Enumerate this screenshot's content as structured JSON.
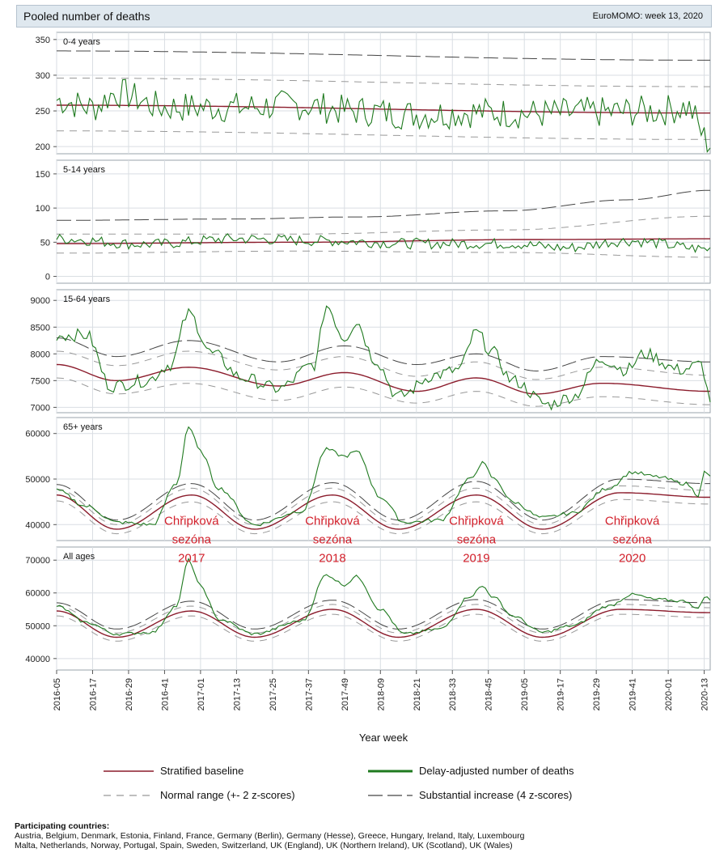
{
  "header": {
    "title": "Pooled number of deaths",
    "source": "EuroMOMO: week 13, 2020"
  },
  "colors": {
    "baseline": "#8b1c2c",
    "deaths": "#1f7a1f",
    "normal": "#999999",
    "substantial": "#444444",
    "annotation": "#d21f2a"
  },
  "chart_data": {
    "type": "line",
    "xlabel": "Year week",
    "x_ticks": [
      "2016-05",
      "2016-17",
      "2016-29",
      "2016-41",
      "2017-01",
      "2017-13",
      "2017-25",
      "2017-37",
      "2017-49",
      "2018-09",
      "2018-21",
      "2018-33",
      "2018-45",
      "2019-05",
      "2019-17",
      "2019-29",
      "2019-41",
      "2020-01",
      "2020-13"
    ],
    "grid": true,
    "panels": [
      {
        "label": "0-4 years",
        "yticks": [
          200,
          250,
          300,
          350
        ],
        "ylim": [
          190,
          360
        ],
        "baseline": [
          [
            0,
            258
          ],
          [
            218,
            247
          ]
        ],
        "normal_hi": [
          [
            0,
            296
          ],
          [
            218,
            284
          ]
        ],
        "normal_lo": [
          [
            0,
            222
          ],
          [
            218,
            210
          ]
        ],
        "substantial": [
          [
            0,
            334
          ],
          [
            218,
            321
          ]
        ],
        "deaths_anchors": [
          [
            0,
            265
          ],
          [
            12,
            255
          ],
          [
            20,
            275
          ],
          [
            36,
            255
          ],
          [
            60,
            255
          ],
          [
            80,
            258
          ],
          [
            100,
            250
          ],
          [
            120,
            245
          ],
          [
            140,
            248
          ],
          [
            160,
            246
          ],
          [
            180,
            248
          ],
          [
            200,
            250
          ],
          [
            210,
            255
          ],
          [
            218,
            205
          ]
        ],
        "deaths_noise": 22
      },
      {
        "label": "5-14 years",
        "yticks": [
          0,
          50,
          100,
          150
        ],
        "ylim": [
          -10,
          170
        ],
        "baseline": [
          [
            0,
            48
          ],
          [
            80,
            50
          ],
          [
            160,
            54
          ],
          [
            218,
            55
          ]
        ],
        "normal_hi": [
          [
            0,
            62
          ],
          [
            80,
            62
          ],
          [
            150,
            68
          ],
          [
            218,
            88
          ]
        ],
        "normal_lo": [
          [
            0,
            34
          ],
          [
            80,
            37
          ],
          [
            150,
            35
          ],
          [
            218,
            28
          ]
        ],
        "substantial": [
          [
            0,
            82
          ],
          [
            60,
            84
          ],
          [
            100,
            87
          ],
          [
            150,
            96
          ],
          [
            190,
            112
          ],
          [
            218,
            126
          ]
        ],
        "deaths_anchors": [
          [
            0,
            55
          ],
          [
            30,
            47
          ],
          [
            60,
            55
          ],
          [
            90,
            52
          ],
          [
            120,
            48
          ],
          [
            150,
            48
          ],
          [
            170,
            42
          ],
          [
            190,
            52
          ],
          [
            218,
            40
          ]
        ],
        "deaths_noise": 8
      },
      {
        "label": "15-64 years",
        "yticks": [
          7000,
          7500,
          8000,
          8500,
          9000
        ],
        "ylim": [
          6900,
          9200
        ],
        "baseline": [
          [
            0,
            7800
          ],
          [
            20,
            7500
          ],
          [
            44,
            7750
          ],
          [
            74,
            7400
          ],
          [
            96,
            7650
          ],
          [
            120,
            7300
          ],
          [
            140,
            7550
          ],
          [
            160,
            7250
          ],
          [
            182,
            7450
          ],
          [
            218,
            7300
          ]
        ],
        "normal_hi": [
          [
            0,
            8050
          ],
          [
            20,
            7780
          ],
          [
            44,
            8050
          ],
          [
            74,
            7700
          ],
          [
            96,
            7950
          ],
          [
            120,
            7580
          ],
          [
            140,
            7850
          ],
          [
            160,
            7520
          ],
          [
            182,
            7750
          ],
          [
            218,
            7600
          ]
        ],
        "normal_lo": [
          [
            0,
            7550
          ],
          [
            20,
            7250
          ],
          [
            44,
            7450
          ],
          [
            74,
            7130
          ],
          [
            96,
            7380
          ],
          [
            120,
            7080
          ],
          [
            140,
            7300
          ],
          [
            160,
            7020
          ],
          [
            182,
            7200
          ],
          [
            218,
            7050
          ]
        ],
        "substantial": [
          [
            0,
            8300
          ],
          [
            20,
            7950
          ],
          [
            44,
            8250
          ],
          [
            74,
            7850
          ],
          [
            96,
            8150
          ],
          [
            120,
            7800
          ],
          [
            140,
            8000
          ],
          [
            160,
            7680
          ],
          [
            182,
            7950
          ],
          [
            218,
            7850
          ]
        ],
        "deaths_anchors": [
          [
            0,
            8350
          ],
          [
            10,
            8350
          ],
          [
            18,
            7400
          ],
          [
            30,
            7500
          ],
          [
            38,
            7800
          ],
          [
            44,
            8750
          ],
          [
            52,
            8000
          ],
          [
            62,
            7550
          ],
          [
            74,
            7350
          ],
          [
            86,
            7800
          ],
          [
            90,
            8900
          ],
          [
            96,
            8300
          ],
          [
            100,
            8600
          ],
          [
            106,
            7900
          ],
          [
            114,
            7200
          ],
          [
            126,
            7600
          ],
          [
            134,
            7700
          ],
          [
            140,
            8400
          ],
          [
            145,
            8050
          ],
          [
            152,
            7500
          ],
          [
            164,
            7050
          ],
          [
            172,
            7200
          ],
          [
            182,
            7900
          ],
          [
            190,
            7700
          ],
          [
            196,
            8000
          ],
          [
            208,
            7700
          ],
          [
            215,
            7800
          ],
          [
            218,
            7150
          ]
        ],
        "deaths_noise": 120
      },
      {
        "label": "65+ years",
        "yticks": [
          40000,
          50000,
          60000
        ],
        "ylim": [
          36500,
          63500
        ],
        "baseline": [
          [
            0,
            46500
          ],
          [
            20,
            39000
          ],
          [
            45,
            46500
          ],
          [
            66,
            39000
          ],
          [
            92,
            46500
          ],
          [
            114,
            39000
          ],
          [
            140,
            46500
          ],
          [
            162,
            39000
          ],
          [
            188,
            47000
          ],
          [
            218,
            46000
          ]
        ],
        "normal_hi": [
          [
            0,
            47800
          ],
          [
            20,
            40000
          ],
          [
            45,
            48000
          ],
          [
            66,
            40000
          ],
          [
            92,
            48000
          ],
          [
            114,
            40000
          ],
          [
            140,
            48000
          ],
          [
            162,
            40000
          ],
          [
            188,
            48500
          ],
          [
            218,
            47500
          ]
        ],
        "normal_lo": [
          [
            0,
            45200
          ],
          [
            20,
            38000
          ],
          [
            45,
            45000
          ],
          [
            66,
            38000
          ],
          [
            92,
            45000
          ],
          [
            114,
            38000
          ],
          [
            140,
            45000
          ],
          [
            162,
            38000
          ],
          [
            188,
            45500
          ],
          [
            218,
            44500
          ]
        ],
        "substantial": [
          [
            0,
            48800
          ],
          [
            20,
            41000
          ],
          [
            45,
            49000
          ],
          [
            66,
            41000
          ],
          [
            92,
            49200
          ],
          [
            114,
            41000
          ],
          [
            140,
            49500
          ],
          [
            162,
            41000
          ],
          [
            188,
            50000
          ],
          [
            218,
            49000
          ]
        ],
        "deaths_anchors": [
          [
            0,
            47500
          ],
          [
            10,
            44000
          ],
          [
            20,
            40500
          ],
          [
            32,
            40000
          ],
          [
            40,
            49000
          ],
          [
            44,
            61500
          ],
          [
            48,
            56000
          ],
          [
            54,
            48000
          ],
          [
            66,
            40000
          ],
          [
            82,
            43000
          ],
          [
            90,
            56500
          ],
          [
            96,
            55000
          ],
          [
            100,
            56000
          ],
          [
            108,
            46000
          ],
          [
            116,
            40500
          ],
          [
            128,
            41000
          ],
          [
            138,
            50000
          ],
          [
            142,
            53500
          ],
          [
            146,
            50000
          ],
          [
            152,
            45000
          ],
          [
            162,
            41500
          ],
          [
            172,
            42500
          ],
          [
            184,
            48000
          ],
          [
            192,
            51500
          ],
          [
            200,
            50500
          ],
          [
            210,
            49000
          ],
          [
            214,
            46500
          ],
          [
            216,
            51500
          ],
          [
            218,
            50500
          ]
        ],
        "deaths_noise": 400
      },
      {
        "label": "All ages",
        "yticks": [
          40000,
          50000,
          60000,
          70000
        ],
        "ylim": [
          36500,
          74000
        ],
        "baseline": [
          [
            0,
            54500
          ],
          [
            20,
            46500
          ],
          [
            45,
            54500
          ],
          [
            66,
            46500
          ],
          [
            92,
            55000
          ],
          [
            114,
            46500
          ],
          [
            140,
            55000
          ],
          [
            162,
            46500
          ],
          [
            188,
            55000
          ],
          [
            218,
            54000
          ]
        ],
        "normal_hi": [
          [
            0,
            56000
          ],
          [
            20,
            47800
          ],
          [
            45,
            56000
          ],
          [
            66,
            47800
          ],
          [
            92,
            56500
          ],
          [
            114,
            47800
          ],
          [
            140,
            56500
          ],
          [
            162,
            47800
          ],
          [
            188,
            56500
          ],
          [
            218,
            55500
          ]
        ],
        "normal_lo": [
          [
            0,
            53000
          ],
          [
            20,
            45300
          ],
          [
            45,
            53000
          ],
          [
            66,
            45300
          ],
          [
            92,
            53500
          ],
          [
            114,
            45300
          ],
          [
            140,
            53500
          ],
          [
            162,
            45300
          ],
          [
            188,
            53500
          ],
          [
            218,
            52500
          ]
        ],
        "substantial": [
          [
            0,
            57000
          ],
          [
            20,
            49000
          ],
          [
            45,
            57500
          ],
          [
            66,
            49000
          ],
          [
            92,
            57800
          ],
          [
            114,
            49000
          ],
          [
            140,
            58000
          ],
          [
            162,
            49000
          ],
          [
            188,
            58000
          ],
          [
            218,
            57000
          ]
        ],
        "deaths_anchors": [
          [
            0,
            56000
          ],
          [
            10,
            51000
          ],
          [
            20,
            47500
          ],
          [
            32,
            48000
          ],
          [
            40,
            56000
          ],
          [
            44,
            70000
          ],
          [
            48,
            62000
          ],
          [
            54,
            52000
          ],
          [
            66,
            47500
          ],
          [
            82,
            51500
          ],
          [
            90,
            65500
          ],
          [
            96,
            62500
          ],
          [
            100,
            65000
          ],
          [
            108,
            55000
          ],
          [
            116,
            47500
          ],
          [
            128,
            49000
          ],
          [
            138,
            59000
          ],
          [
            142,
            62000
          ],
          [
            146,
            58500
          ],
          [
            152,
            53000
          ],
          [
            162,
            48000
          ],
          [
            172,
            50000
          ],
          [
            184,
            56000
          ],
          [
            192,
            59500
          ],
          [
            200,
            58000
          ],
          [
            210,
            57500
          ],
          [
            214,
            55000
          ],
          [
            216,
            59000
          ],
          [
            218,
            58000
          ]
        ],
        "deaths_noise": 450
      }
    ],
    "annotations": [
      {
        "text": [
          "Chřipková",
          "sezóna",
          "2017"
        ],
        "x": 45,
        "panel": 3,
        "y": 40000
      },
      {
        "text": [
          "Chřipková",
          "sezóna",
          "2018"
        ],
        "x": 92,
        "panel": 3,
        "y": 40000
      },
      {
        "text": [
          "Chřipková",
          "sezóna",
          "2019"
        ],
        "x": 140,
        "panel": 3,
        "y": 40000
      },
      {
        "text": [
          "Chřipková",
          "sezóna",
          "2020"
        ],
        "x": 192,
        "panel": 3,
        "y": 40000
      }
    ]
  },
  "legend": {
    "baseline": "Stratified baseline",
    "deaths": "Delay-adjusted number of deaths",
    "normal": "Normal range (+- 2 z-scores)",
    "substantial": "Substantial increase (4 z-scores)"
  },
  "countries": {
    "heading": "Participating countries:",
    "line1": "Austria, Belgium, Denmark, Estonia, Finland, France, Germany (Berlin), Germany (Hesse), Greece, Hungary, Ireland, Italy, Luxembourg",
    "line2": "Malta, Netherlands, Norway, Portugal, Spain, Sweden, Switzerland, UK (England), UK (Northern Ireland), UK (Scotland), UK (Wales)"
  }
}
